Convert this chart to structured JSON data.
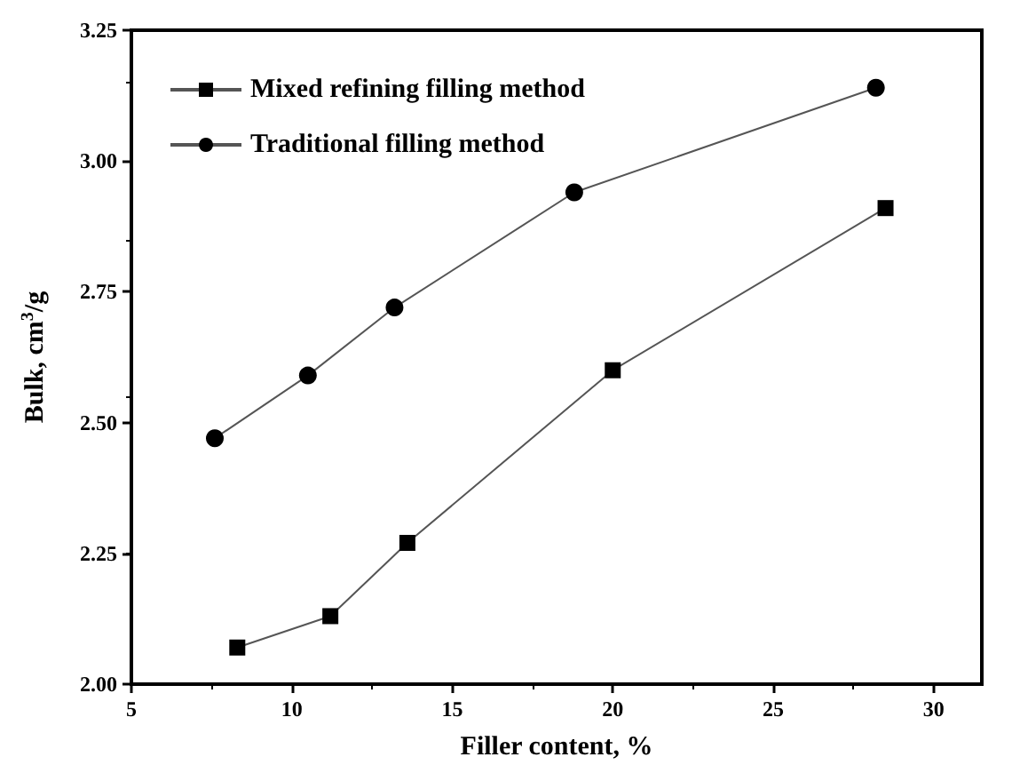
{
  "chart_data": {
    "type": "line",
    "xlabel": "Filler content, %",
    "ylabel": "Bulk, cm$^{3}$/g",
    "xlim": [
      5,
      31.5
    ],
    "xticks": [
      5,
      10,
      15,
      20,
      25,
      30
    ],
    "ylim": [
      2.0,
      3.25
    ],
    "yticks": [
      {
        "value": 2,
        "label": "2.00"
      },
      {
        "value": 2.25,
        "label": "2.25"
      },
      {
        "value": 2.5,
        "label": "2.50"
      },
      {
        "value": 2.75,
        "label": "2.75"
      },
      {
        "value": 3,
        "label": "3.00"
      },
      {
        "value": 3.25,
        "label": "3.25"
      }
    ],
    "legend": "top left",
    "grid": false,
    "series": [
      {
        "name": "Mixed refining filling method",
        "color": "#000000",
        "marker": "square",
        "x": [
          8.3,
          11.2,
          13.6,
          20.0,
          28.5
        ],
        "values": [
          2.07,
          2.13,
          2.27,
          2.6,
          2.91
        ]
      },
      {
        "name": "Traditional filling method",
        "color": "#000000",
        "marker": "circle",
        "x": [
          7.6,
          10.5,
          13.2,
          18.8,
          28.2
        ],
        "values": [
          2.47,
          2.59,
          2.72,
          2.94,
          3.14
        ]
      }
    ]
  }
}
